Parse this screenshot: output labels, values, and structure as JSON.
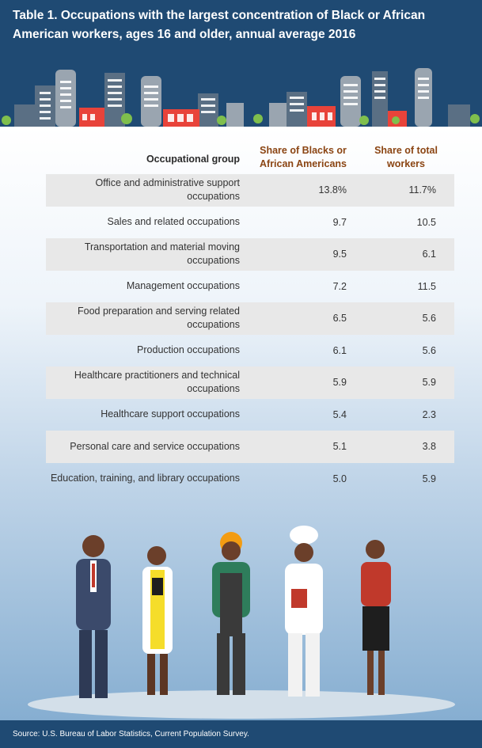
{
  "title": "Table 1. Occupations with the largest concentration of Black or African American workers, ages 16 and older, annual average 2016",
  "source": "Source: U.S. Bureau of Labor Statistics, Current Population Survey.",
  "colors": {
    "header_bg": "#1f4a73",
    "header_text": "#8b4513",
    "row_shade": "#e8e8e8"
  },
  "chart_data": {
    "type": "table",
    "title": "Table 1. Occupations with the largest concentration of Black or African American workers, ages 16 and older, annual average 2016",
    "columns": [
      "Occupational group",
      "Share of Blacks or African Americans",
      "Share of total workers"
    ],
    "rows": [
      {
        "group": "Office and administrative support occupations",
        "black": "13.8%",
        "total": "11.7%"
      },
      {
        "group": "Sales and related occupations",
        "black": "9.7",
        "total": "10.5"
      },
      {
        "group": "Transportation and material moving occupations",
        "black": "9.5",
        "total": "6.1"
      },
      {
        "group": "Management occupations",
        "black": "7.2",
        "total": "11.5"
      },
      {
        "group": "Food preparation and serving related occupations",
        "black": "6.5",
        "total": "5.6"
      },
      {
        "group": "Production occupations",
        "black": "6.1",
        "total": "5.6"
      },
      {
        "group": "Healthcare practitioners and technical occupations",
        "black": "5.9",
        "total": "5.9"
      },
      {
        "group": "Healthcare support occupations",
        "black": "5.4",
        "total": "2.3"
      },
      {
        "group": "Personal care and service occupations",
        "black": "5.1",
        "total": "3.8"
      },
      {
        "group": "Education, training, and library occupations",
        "black": "5.0",
        "total": "5.9"
      }
    ]
  }
}
